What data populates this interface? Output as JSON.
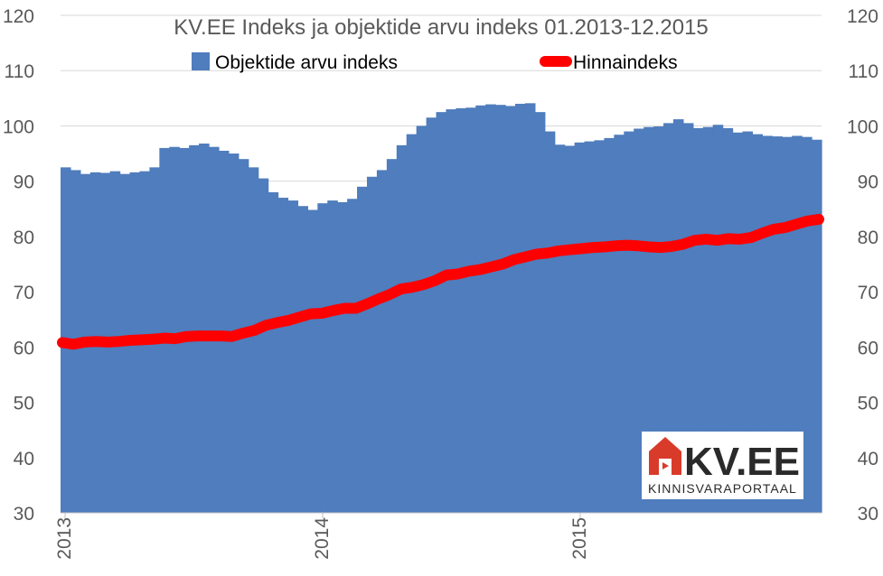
{
  "chart_data": {
    "type": "area",
    "title": "KV.EE Indeks ja objektide arvu indeks 01.2013-12.2015",
    "ylim": [
      30,
      120
    ],
    "y_ticks": [
      "30",
      "40",
      "50",
      "60",
      "70",
      "80",
      "90",
      "100",
      "110",
      "120"
    ],
    "x_tick_labels": [
      "2013",
      "2014",
      "2015"
    ],
    "grid": true,
    "legend_placement": "top",
    "series": [
      {
        "name": "Objektide arvu indeks",
        "kind": "area",
        "color": "#4f7dbd",
        "values": [
          92.5,
          92.0,
          91.3,
          91.6,
          91.5,
          91.8,
          91.3,
          91.6,
          91.8,
          92.5,
          96.0,
          96.2,
          96.0,
          96.5,
          96.8,
          96.2,
          95.5,
          95.0,
          94.0,
          92.5,
          90.5,
          88.0,
          87.0,
          86.5,
          85.5,
          84.8,
          86.0,
          86.5,
          86.2,
          86.8,
          89.0,
          90.8,
          92.0,
          94.0,
          96.5,
          98.5,
          100.0,
          101.5,
          102.5,
          103.0,
          103.2,
          103.3,
          103.7,
          103.9,
          103.8,
          103.6,
          104.0,
          104.1,
          102.5,
          99.0,
          96.6,
          96.4,
          97.0,
          97.2,
          97.4,
          97.8,
          98.4,
          99.0,
          99.5,
          99.8,
          99.9,
          100.5,
          101.2,
          100.5,
          99.6,
          99.8,
          100.2,
          99.6,
          98.8,
          99.0,
          98.5,
          98.2,
          98.1,
          98.0,
          98.2,
          98.0,
          97.5
        ]
      },
      {
        "name": "Hinnaindeks",
        "kind": "line",
        "color": "#ff0000",
        "values": [
          60.8,
          60.5,
          60.9,
          61.0,
          60.9,
          61.0,
          61.2,
          61.3,
          61.4,
          61.6,
          61.5,
          61.9,
          62.0,
          62.0,
          62.0,
          61.9,
          62.5,
          63.0,
          63.9,
          64.4,
          64.8,
          65.4,
          66.0,
          66.1,
          66.6,
          67.0,
          67.0,
          67.8,
          68.7,
          69.5,
          70.5,
          70.8,
          71.3,
          72.0,
          73.0,
          73.2,
          73.7,
          74.0,
          74.5,
          75.0,
          75.8,
          76.3,
          76.8,
          77.0,
          77.4,
          77.6,
          77.8,
          78.0,
          78.1,
          78.3,
          78.4,
          78.3,
          78.1,
          78.0,
          78.2,
          78.6,
          79.3,
          79.5,
          79.3,
          79.6,
          79.5,
          79.8,
          80.6,
          81.3,
          81.6,
          82.2,
          82.8,
          83.1
        ]
      }
    ]
  },
  "logo": {
    "name": "KV.EE",
    "tagline": "KINNISVARAPORTAAL",
    "icon": "house-icon",
    "brand_color": "#d93b2b"
  }
}
